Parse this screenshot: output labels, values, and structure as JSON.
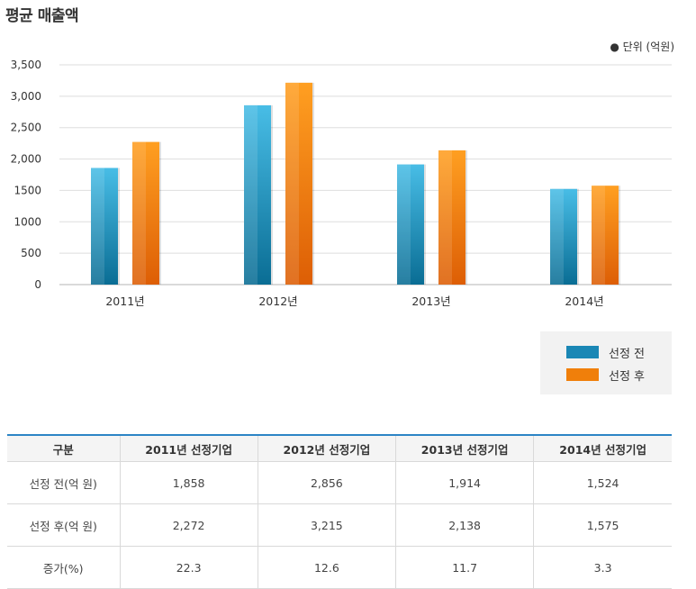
{
  "page": {
    "title": "평균 매출액",
    "unit_label": "● 단위 (억원)"
  },
  "colors": {
    "before": "#1a87b5",
    "after": "#f07f0a",
    "table_accent": "#2c84c5"
  },
  "chart_data": {
    "type": "bar",
    "title": "평균 매출액",
    "categories": [
      "2011년",
      "2012년",
      "2013년",
      "2014년"
    ],
    "series": [
      {
        "name": "선정 전",
        "values": [
          1858,
          2856,
          1914,
          1524
        ]
      },
      {
        "name": "선정 후",
        "values": [
          2272,
          3215,
          2138,
          1575
        ]
      }
    ],
    "ylim": [
      0,
      3500
    ],
    "yticks": [
      0,
      500,
      1000,
      1500,
      2000,
      2500,
      3000,
      3500
    ],
    "ytick_labels": [
      "0",
      "500",
      "1000",
      "1500",
      "2,000",
      "2,500",
      "3,000",
      "3,500"
    ],
    "grid": true,
    "legend": "bottom-right"
  },
  "legend": {
    "items": [
      {
        "label": "선정 전"
      },
      {
        "label": "선정 후"
      }
    ]
  },
  "table": {
    "headers": [
      "구분",
      "2011년 선정기업",
      "2012년 선정기업",
      "2013년 선정기업",
      "2014년 선정기업"
    ],
    "rows": [
      [
        "선정 전(억 원)",
        "1,858",
        "2,856",
        "1,914",
        "1,524"
      ],
      [
        "선정 후(억 원)",
        "2,272",
        "3,215",
        "2,138",
        "1,575"
      ],
      [
        "증가(%)",
        "22.3",
        "12.6",
        "11.7",
        "3.3"
      ]
    ]
  }
}
